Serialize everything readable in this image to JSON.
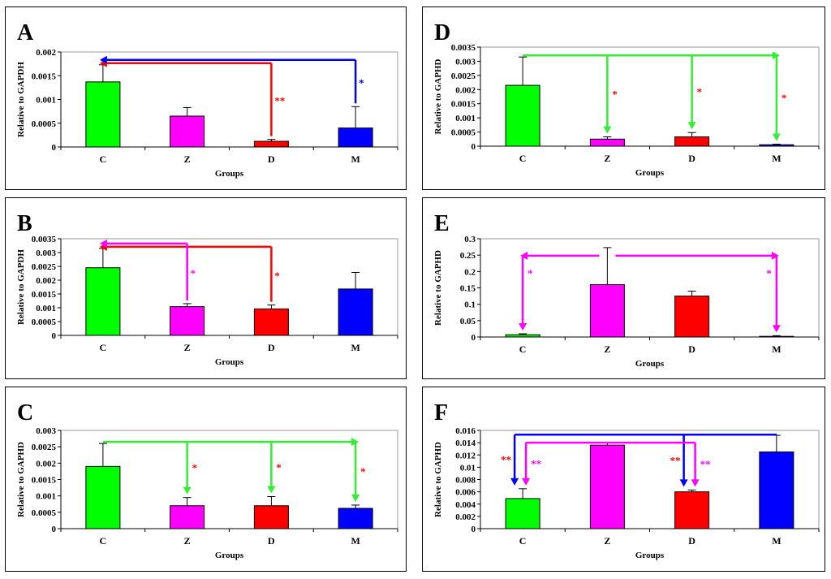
{
  "chart_data": [
    {
      "panel": "A",
      "type": "bar",
      "categories": [
        "C",
        "Z",
        "D",
        "M"
      ],
      "values": [
        0.00137,
        0.00065,
        0.00012,
        0.0004
      ],
      "errors": [
        0.00036,
        0.00018,
        4e-05,
        0.00045
      ],
      "colors": [
        "#00ff00",
        "#ff00ff",
        "#ff0000",
        "#0000ff"
      ],
      "ylim": [
        0,
        0.002
      ],
      "yticks": [
        "0",
        "0.0005",
        "0.001",
        "0.0015",
        "0.002"
      ],
      "ylabel": "Relative to GAPDH",
      "xlabel": "Groups",
      "annotations": [
        {
          "color": "#ff0000",
          "from": "D",
          "to": [
            "C"
          ],
          "style": "to_bar",
          "label": "**",
          "label_at": "from"
        },
        {
          "color": "#0000ff",
          "from": "M",
          "to": [
            "C"
          ],
          "style": "to_bar",
          "label": "*",
          "label_at": "from"
        }
      ]
    },
    {
      "panel": "B",
      "type": "bar",
      "categories": [
        "C",
        "Z",
        "D",
        "M"
      ],
      "values": [
        0.00245,
        0.00104,
        0.00096,
        0.00168
      ],
      "errors": [
        0.0007,
        0.00011,
        0.00014,
        0.0006
      ],
      "colors": [
        "#00ff00",
        "#ff00ff",
        "#ff0000",
        "#0000ff"
      ],
      "ylim": [
        0,
        0.0035
      ],
      "yticks": [
        "0",
        "0.0005",
        "0.001",
        "0.0015",
        "0.002",
        "0.0025",
        "0.003",
        "0.0035"
      ],
      "ylabel": "Relative to GAPDH",
      "xlabel": "Groups",
      "annotations": [
        {
          "color": "#ff0000",
          "from": "D",
          "to": [
            "C"
          ],
          "style": "to_bar",
          "label": "*",
          "label_at": "from"
        },
        {
          "color": "#ff00ff",
          "from": "Z",
          "to": [
            "C"
          ],
          "style": "to_bar",
          "label": "*",
          "label_at": "from"
        }
      ]
    },
    {
      "panel": "C",
      "type": "bar",
      "categories": [
        "C",
        "Z",
        "D",
        "M"
      ],
      "values": [
        0.0019,
        0.0007,
        0.0007,
        0.00062
      ],
      "errors": [
        0.0007,
        0.00025,
        0.00028,
        0.0001
      ],
      "colors": [
        "#00ff00",
        "#ff00ff",
        "#ff0000",
        "#0000ff"
      ],
      "ylim": [
        0,
        0.003
      ],
      "yticks": [
        "0",
        "0.0005",
        "0.001",
        "0.0015",
        "0.002",
        "0.0025",
        "0.003"
      ],
      "ylabel": "Relative to GAPHD",
      "xlabel": "Groups",
      "annotations": [
        {
          "color": "#33ee33",
          "from": "C",
          "to": [
            "Z",
            "D",
            "M"
          ],
          "style": "down_to_bar",
          "label": "*",
          "label_color": "#ff0000"
        }
      ]
    },
    {
      "panel": "D",
      "type": "bar",
      "categories": [
        "C",
        "Z",
        "D",
        "M"
      ],
      "values": [
        0.00215,
        0.00025,
        0.00033,
        5e-05
      ],
      "errors": [
        0.001,
        8e-05,
        0.00015,
        2e-05
      ],
      "colors": [
        "#00ff00",
        "#ff00ff",
        "#ff0000",
        "#0000ff"
      ],
      "ylim": [
        0,
        0.0035
      ],
      "yticks": [
        "0",
        "0.0005",
        "0.001",
        "0.0015",
        "0.002",
        "0.0025",
        "0.003",
        "0.0035"
      ],
      "ylabel": "Relative to GAPHD",
      "xlabel": "Groups",
      "annotations": [
        {
          "color": "#33ee33",
          "from": "C",
          "to": [
            "Z",
            "D",
            "M"
          ],
          "style": "down_to_bar",
          "label": "*",
          "label_color": "#ff0000"
        }
      ]
    },
    {
      "panel": "E",
      "type": "bar",
      "categories": [
        "C",
        "Z",
        "D",
        "M"
      ],
      "values": [
        0.007,
        0.16,
        0.125,
        0.002
      ],
      "errors": [
        0.003,
        0.113,
        0.015,
        0.002
      ],
      "colors": [
        "#00ff00",
        "#ff00ff",
        "#ff0000",
        "#0000ff"
      ],
      "ylim": [
        0,
        0.3
      ],
      "yticks": [
        "0",
        "0.05",
        "0.1",
        "0.15",
        "0.2",
        "0.25",
        "0.3"
      ],
      "ylabel": "Relative to GAPHD",
      "xlabel": "Groups",
      "annotations": [
        {
          "color": "#ff00ff",
          "from": "Z",
          "to": [
            "C",
            "M"
          ],
          "style": "split_down",
          "label": "*",
          "label_color": "#ff00ff"
        }
      ]
    },
    {
      "panel": "F",
      "type": "bar",
      "categories": [
        "C",
        "Z",
        "D",
        "M"
      ],
      "values": [
        0.0049,
        0.0136,
        0.006,
        0.0125
      ],
      "errors": [
        0.0016,
        0.0004,
        0.0003,
        0.0027
      ],
      "colors": [
        "#00ff00",
        "#ff00ff",
        "#ff0000",
        "#0000ff"
      ],
      "ylim": [
        0,
        0.016
      ],
      "yticks": [
        "0",
        "0.002",
        "0.004",
        "0.006",
        "0.008",
        "0.01",
        "0.012",
        "0.014",
        "0.016"
      ],
      "ylabel": "Relative to GAPHD",
      "xlabel": "Groups",
      "annotations": [
        {
          "color": "#0000ff",
          "from": "M",
          "to": [
            "C",
            "D"
          ],
          "style": "down_to_bar",
          "label": "**",
          "label_color": "#ff0000",
          "level": 0.0153,
          "offset": -10
        },
        {
          "color": "#ff00ff",
          "from": "Z",
          "to": [
            "C",
            "D"
          ],
          "style": "down_to_bar",
          "label": "**",
          "label_color": "#ff00ff",
          "level": 0.014,
          "offset": 4
        }
      ]
    }
  ]
}
